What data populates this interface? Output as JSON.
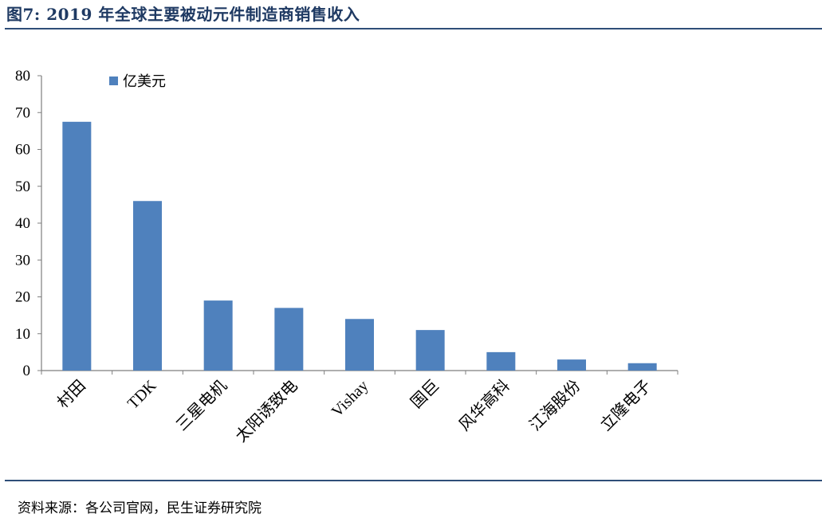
{
  "header": {
    "figure_title": "图7: 2019 年全球主要被动元件制造商销售收入"
  },
  "footer": {
    "source": "资料来源：各公司官网，民生证券研究院"
  },
  "colors": {
    "bar": "#4f81bd",
    "rule": "#2f4e78",
    "title": "#1f3a63"
  },
  "chart_data": {
    "type": "bar",
    "title": "",
    "xlabel": "",
    "ylabel": "",
    "categories": [
      "村田",
      "TDK",
      "三星电机",
      "太阳诱致电",
      "Vishay",
      "国巨",
      "风华高科",
      "江海股份",
      "立隆电子"
    ],
    "series": [
      {
        "name": "亿美元",
        "values": [
          67.5,
          46,
          19,
          17,
          14,
          11,
          5,
          3,
          2
        ]
      }
    ],
    "ylim": [
      0,
      80
    ],
    "yticks": [
      0,
      10,
      20,
      30,
      40,
      50,
      60,
      70,
      80
    ],
    "legend_position": "top-left",
    "grid": false
  }
}
